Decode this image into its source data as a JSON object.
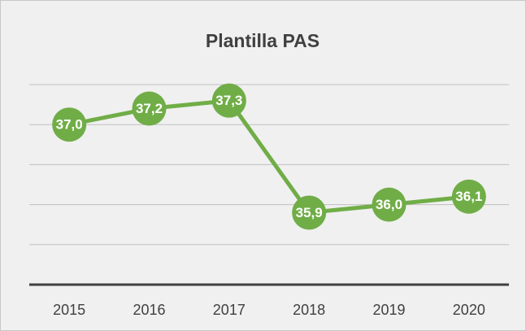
{
  "chart_data": {
    "type": "line",
    "title": "Plantilla PAS",
    "categories": [
      "2015",
      "2016",
      "2017",
      "2018",
      "2019",
      "2020"
    ],
    "series": [
      {
        "name": "PAS",
        "color": "#70ad47",
        "values": [
          37.0,
          37.2,
          37.3,
          35.9,
          36.0,
          36.1
        ],
        "value_labels": [
          "37,0",
          "37,2",
          "37,3",
          "35,9",
          "36,0",
          "36,1"
        ]
      }
    ],
    "ylim": [
      35,
      37.5
    ],
    "yticks": [
      35,
      35.5,
      36,
      36.5,
      37,
      37.5
    ],
    "grid": true
  }
}
